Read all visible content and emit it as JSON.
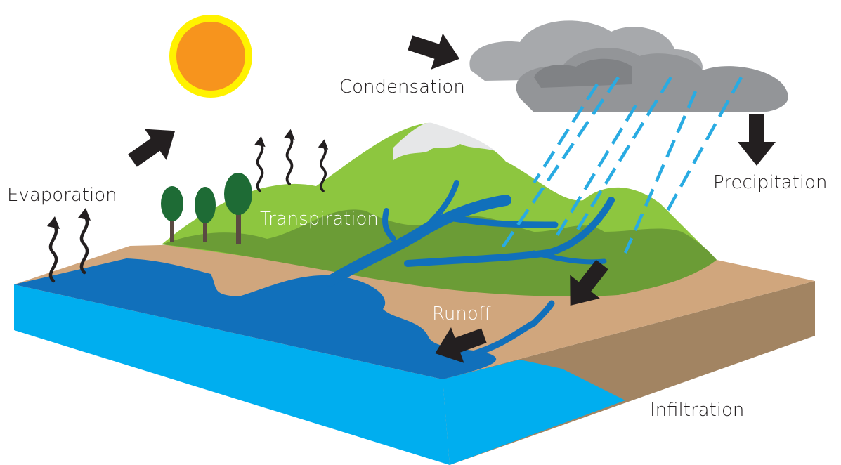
{
  "labels": [
    "Evaporation",
    "Condensation",
    "Precipitation",
    "Transpiration",
    "Runoff",
    "Infiltration"
  ]
}
